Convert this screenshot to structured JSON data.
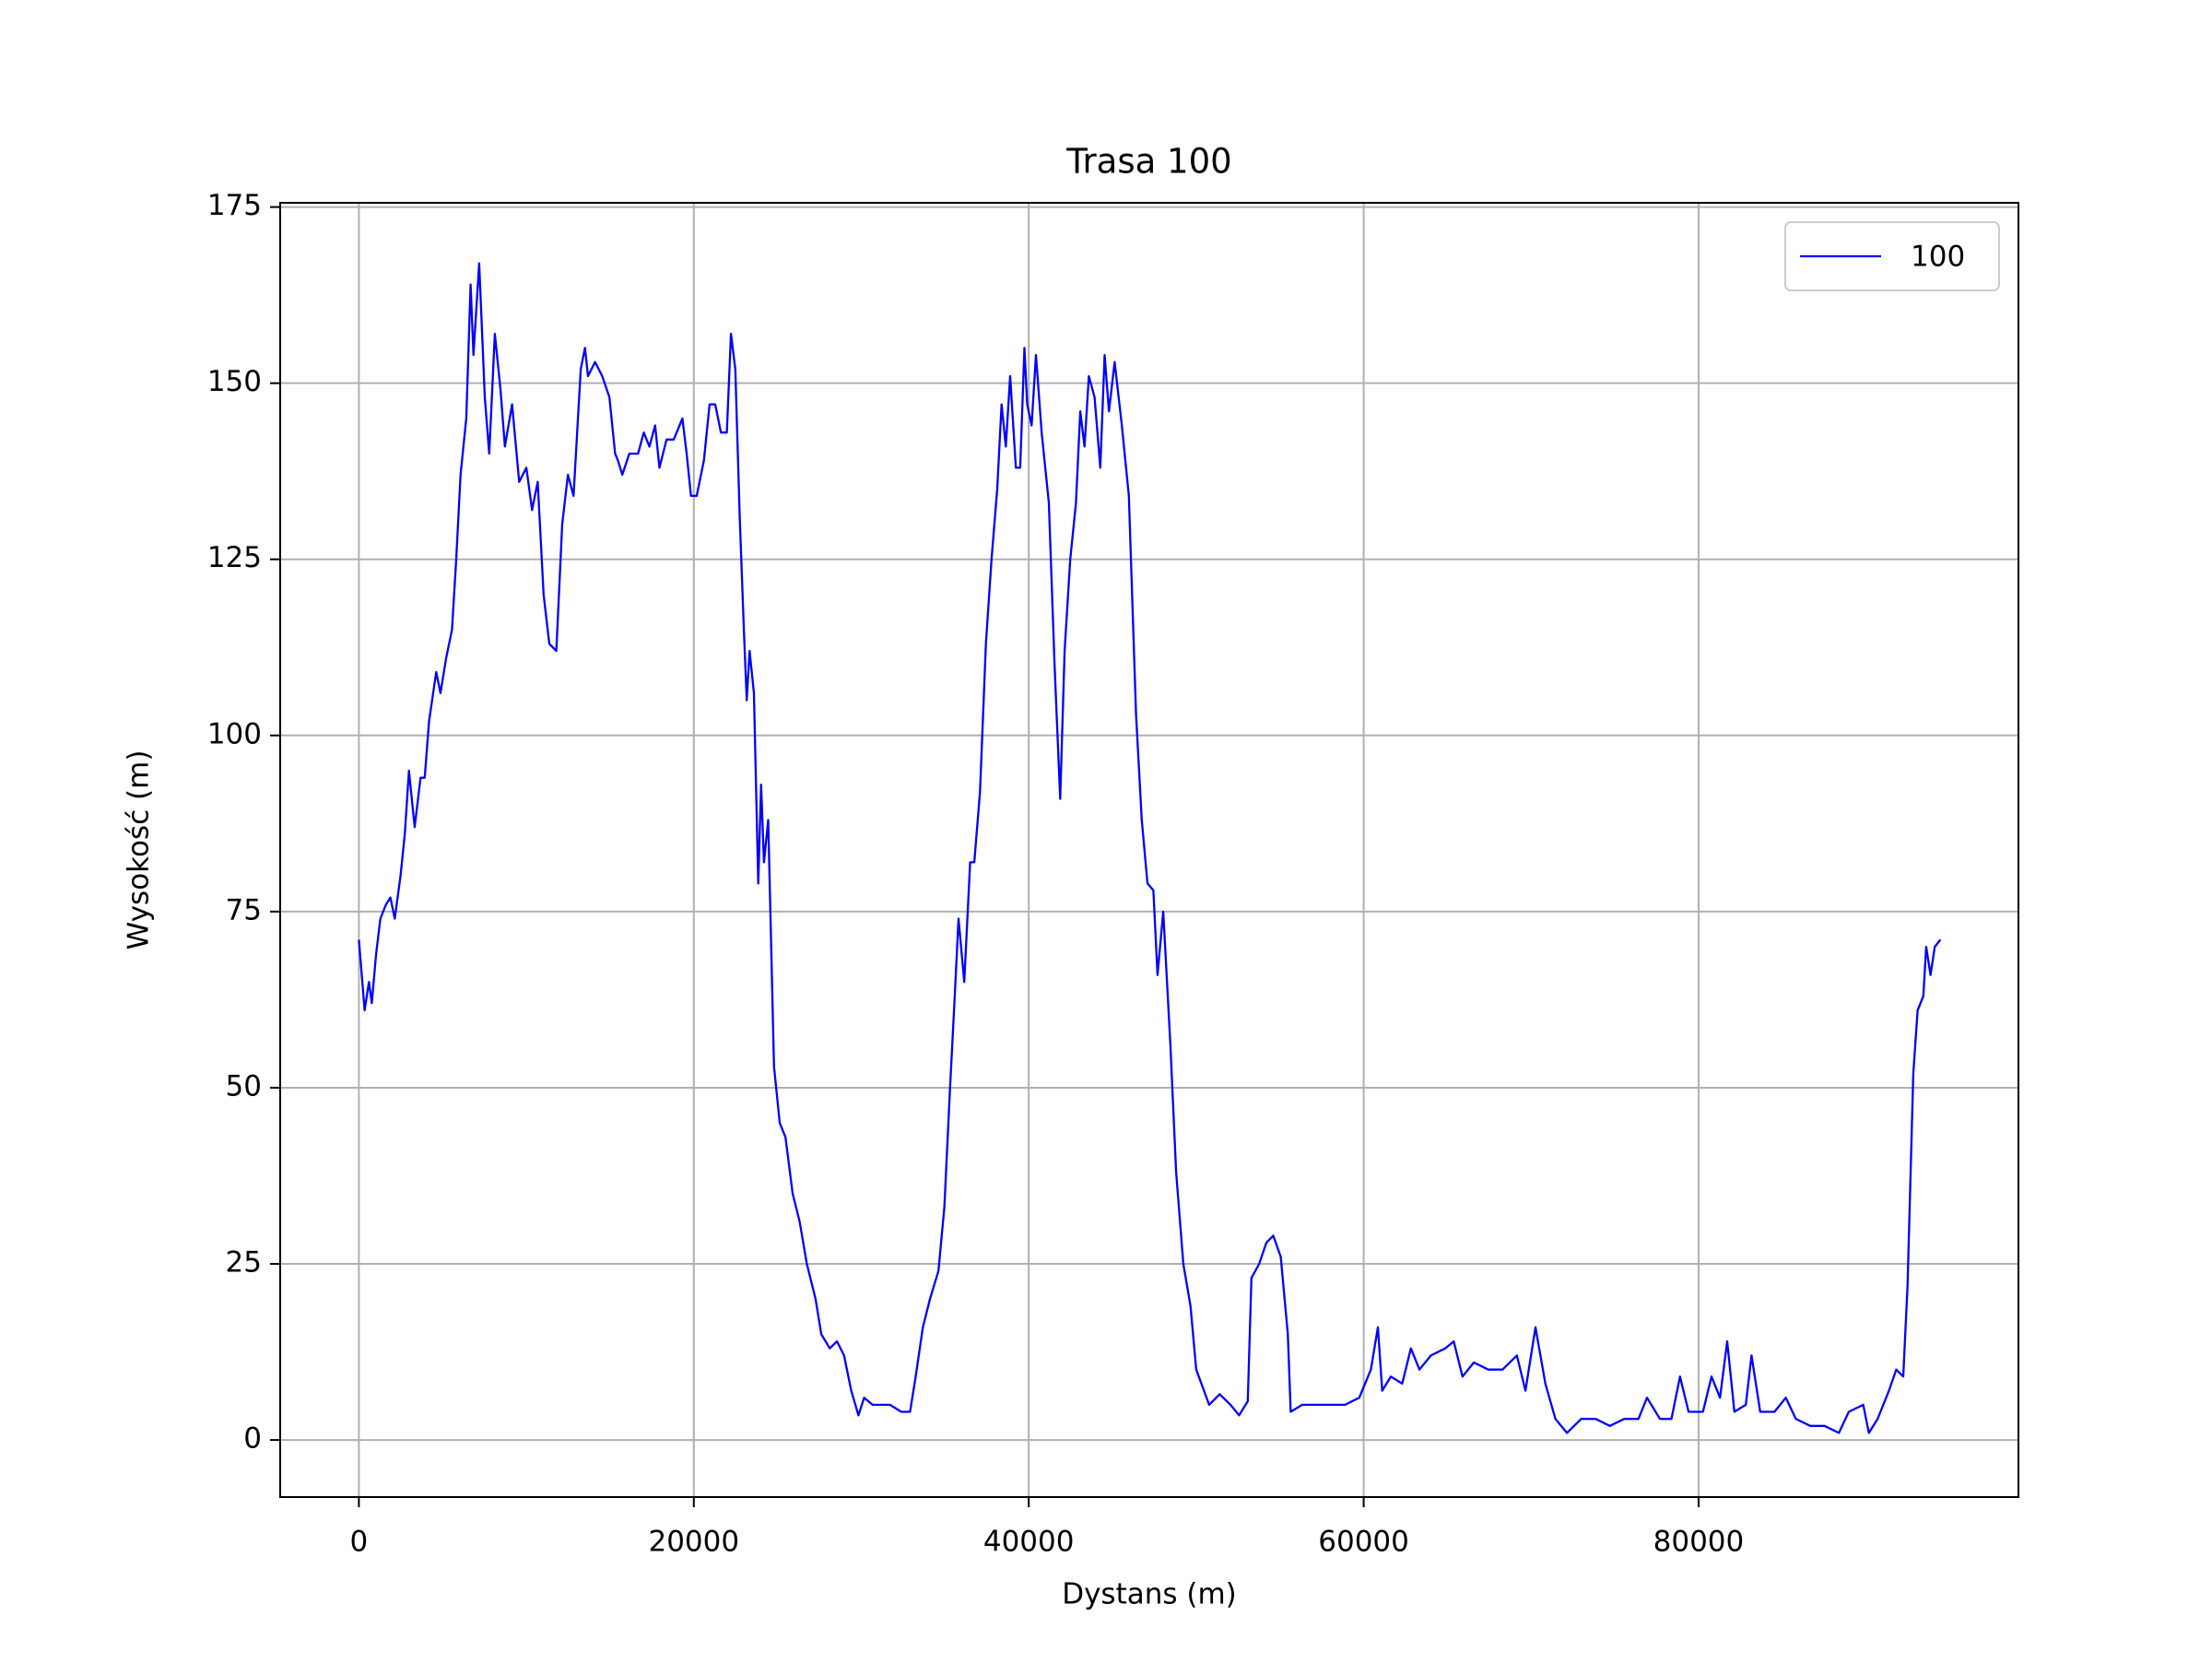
{
  "chart_data": {
    "type": "line",
    "title": "Trasa 100",
    "x_label": "Dystans (m)",
    "y_label": "Wysokość (m)",
    "xlim": [
      -4700,
      99100
    ],
    "ylim": [
      -8.1,
      175.6
    ],
    "xticks": [
      0,
      20000,
      40000,
      60000,
      80000
    ],
    "yticks": [
      0,
      25,
      50,
      75,
      100,
      125,
      150,
      175
    ],
    "grid": true,
    "legend_loc": "upper right",
    "series": [
      {
        "name": "100",
        "color": "#0000ff",
        "x": [
          0,
          340,
          600,
          770,
          1030,
          1280,
          1620,
          1880,
          2140,
          2480,
          2740,
          2990,
          3330,
          3680,
          3930,
          4190,
          4620,
          4870,
          5210,
          5560,
          5810,
          6070,
          6410,
          6670,
          6840,
          7180,
          7520,
          7780,
          8120,
          8460,
          8720,
          9150,
          9570,
          10000,
          10340,
          10680,
          11030,
          11370,
          11790,
          12140,
          12480,
          12820,
          13250,
          13500,
          13680,
          14100,
          14530,
          14960,
          15300,
          15470,
          15730,
          16150,
          16670,
          17010,
          17350,
          17690,
          17950,
          18370,
          18800,
          19150,
          19320,
          19570,
          19830,
          20170,
          20600,
          20940,
          21280,
          21620,
          21970,
          22220,
          22480,
          22740,
          22990,
          23160,
          23330,
          23590,
          23850,
          24020,
          24190,
          24440,
          24790,
          25130,
          25470,
          25900,
          26320,
          26750,
          27270,
          27610,
          28120,
          28550,
          28970,
          29400,
          29830,
          30170,
          30680,
          31200,
          31710,
          32390,
          32910,
          33250,
          33680,
          34100,
          34610,
          34960,
          35300,
          35560,
          35810,
          36150,
          36500,
          36750,
          37090,
          37440,
          37780,
          38120,
          38380,
          38630,
          38890,
          39230,
          39490,
          39740,
          39910,
          40170,
          40430,
          40770,
          41200,
          41540,
          41880,
          42140,
          42480,
          42820,
          43080,
          43330,
          43590,
          43930,
          44270,
          44530,
          44790,
          45130,
          45560,
          45980,
          46410,
          46750,
          47090,
          47440,
          47690,
          48030,
          48460,
          48800,
          49230,
          49660,
          50000,
          50770,
          51400,
          52050,
          52560,
          53080,
          53300,
          53760,
          54190,
          54600,
          55050,
          55470,
          55640,
          56330,
          57180,
          58030,
          58890,
          59740,
          60430,
          60850,
          61110,
          61620,
          62300,
          62820,
          63330,
          64020,
          64870,
          65380,
          65900,
          66580,
          67440,
          68290,
          69150,
          69660,
          70260,
          70850,
          71450,
          72140,
          72990,
          73850,
          74700,
          75560,
          76410,
          76920,
          77690,
          78380,
          78890,
          79400,
          80260,
          80770,
          81280,
          81710,
          82140,
          82820,
          83160,
          83680,
          84530,
          85210,
          85810,
          86670,
          87520,
          88380,
          88970,
          89830,
          90170,
          90690,
          91370,
          91800,
          92220,
          92480,
          92820,
          93080,
          93420,
          93590,
          93850,
          94100,
          94440
        ],
        "values": [
          71,
          61,
          65,
          62,
          69,
          74,
          76,
          77,
          74,
          80,
          86,
          95,
          87,
          94,
          94,
          102,
          109,
          106,
          111,
          115,
          125,
          137,
          145,
          164,
          154,
          167,
          148,
          140,
          157,
          149,
          141,
          147,
          136,
          138,
          132,
          136,
          120,
          113,
          112,
          130,
          137,
          134,
          152,
          155,
          151,
          153,
          151,
          148,
          140,
          139,
          137,
          140,
          140,
          143,
          141,
          144,
          138,
          142,
          142,
          144,
          145,
          140,
          134,
          134,
          139,
          147,
          147,
          143,
          143,
          157,
          152,
          131,
          115,
          105,
          112,
          106,
          79,
          93,
          82,
          88,
          53,
          45,
          43,
          35,
          31,
          25,
          20,
          15,
          13,
          14,
          12,
          7,
          3.5,
          6,
          5,
          5,
          5,
          4,
          4,
          9,
          16,
          20,
          24,
          33,
          50,
          62,
          74,
          65,
          82,
          82,
          92,
          113,
          125,
          135,
          147,
          141,
          151,
          138,
          138,
          155,
          147,
          144,
          154,
          143,
          133,
          110,
          91,
          112,
          125,
          133,
          146,
          141,
          151,
          148,
          138,
          154,
          146,
          153,
          144,
          134,
          103,
          88,
          79,
          78,
          66,
          75,
          56,
          38,
          25,
          19,
          10,
          5,
          6.5,
          5,
          3.5,
          5.5,
          23,
          25,
          28,
          29,
          26,
          15,
          4,
          5,
          5,
          5,
          5,
          6,
          10,
          16,
          7,
          9,
          8,
          13,
          10,
          12,
          13,
          14,
          9,
          11,
          10,
          10,
          12,
          7,
          16,
          8,
          3,
          1,
          3,
          3,
          2,
          3,
          3,
          6,
          3,
          3,
          9,
          4,
          4,
          9,
          6,
          14,
          4,
          5,
          12,
          4,
          4,
          6,
          3,
          2,
          2,
          1,
          4,
          5,
          1,
          3,
          7,
          10,
          9,
          22,
          52,
          61,
          63,
          70,
          66,
          70,
          71
        ]
      }
    ]
  }
}
